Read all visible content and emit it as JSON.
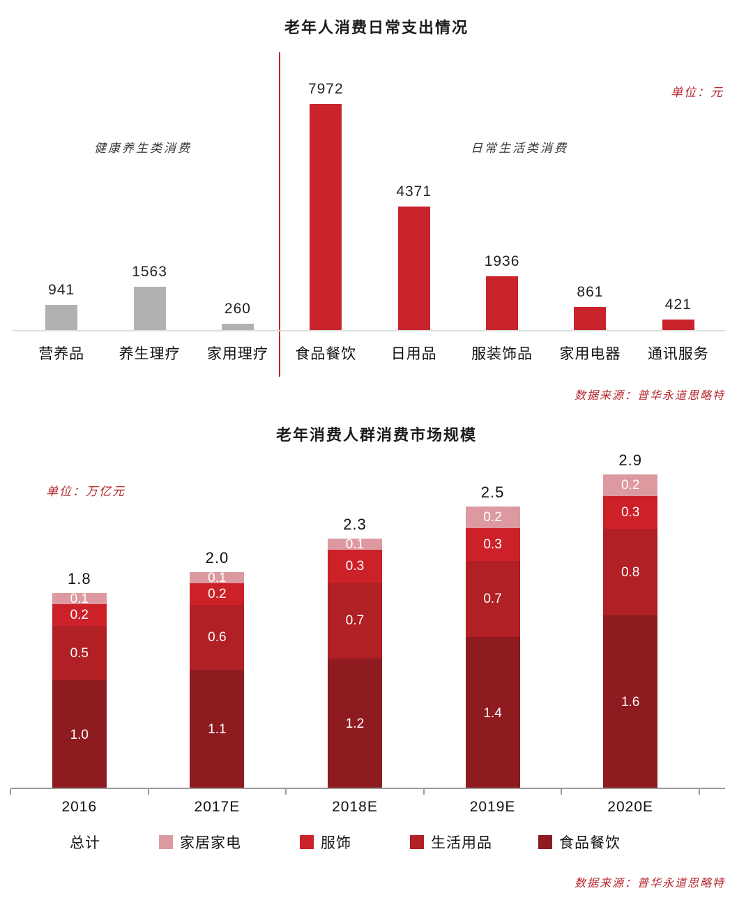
{
  "page": {
    "background": "#ffffff"
  },
  "chart_data": [
    {
      "type": "bar",
      "title": "老年人消费日常支出情况",
      "unit_label": "单位：元",
      "source": "数据来源：普华永道思略特",
      "section_labels": {
        "left": "健康养生类消费",
        "right": "日常生活类消费"
      },
      "categories": [
        "营养品",
        "养生理疗",
        "家用理疗",
        "食品餐饮",
        "日用品",
        "服装饰品",
        "家用电器",
        "通讯服务"
      ],
      "values": [
        941,
        1563,
        260,
        7972,
        4371,
        1936,
        861,
        421
      ],
      "groups": [
        "health",
        "health",
        "health",
        "daily",
        "daily",
        "daily",
        "daily",
        "daily"
      ],
      "group_colors": {
        "health": "#b1b1b1",
        "daily": "#c9242c"
      },
      "divider_color": "#c0262c",
      "xlabel": "",
      "ylabel": "",
      "ylim": [
        0,
        8000
      ],
      "grid": false,
      "legend_position": "none"
    },
    {
      "type": "bar",
      "stacked": true,
      "title": "老年消费人群消费市场规模",
      "unit_label": "单位：万亿元",
      "source": "数据来源：普华永道思略特",
      "categories": [
        "2016",
        "2017E",
        "2018E",
        "2019E",
        "2020E"
      ],
      "totals": [
        1.8,
        2.0,
        2.3,
        2.5,
        2.9
      ],
      "series": [
        {
          "name": "食品餐饮",
          "color": "#8e1b20",
          "values": [
            1.0,
            1.1,
            1.2,
            1.4,
            1.6
          ]
        },
        {
          "name": "生活用品",
          "color": "#b02025",
          "values": [
            0.5,
            0.6,
            0.7,
            0.7,
            0.8
          ]
        },
        {
          "name": "服饰",
          "color": "#cd2129",
          "values": [
            0.2,
            0.2,
            0.3,
            0.3,
            0.3
          ]
        },
        {
          "name": "家居家电",
          "color": "#dc9aa0",
          "values": [
            0.1,
            0.1,
            0.1,
            0.2,
            0.2
          ]
        }
      ],
      "legend": {
        "total_label": "总计",
        "items": [
          "家居家电",
          "服饰",
          "生活用品",
          "食品餐饮"
        ]
      },
      "xlabel": "",
      "ylabel": "",
      "ylim": [
        0,
        3
      ],
      "grid": false,
      "legend_position": "bottom"
    }
  ]
}
